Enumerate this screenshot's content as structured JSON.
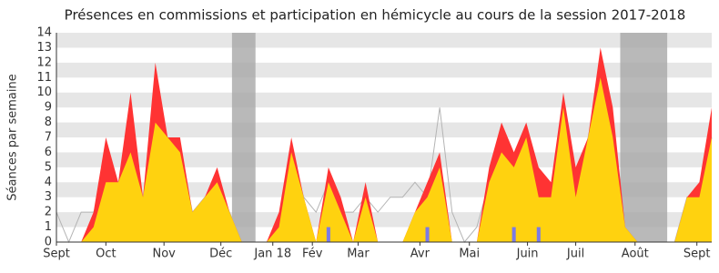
{
  "chart_data": {
    "type": "area",
    "title": "Présences en commissions et participation en hémicycle au cours de la session 2017-2018",
    "y_label": "Séances par semaine",
    "x": [
      0,
      1,
      2,
      3,
      4,
      5,
      6,
      7,
      8,
      9,
      10,
      11,
      12,
      13,
      14,
      15,
      16,
      17,
      18,
      19,
      20,
      21,
      22,
      23,
      24,
      25,
      26,
      27,
      28,
      29,
      30,
      31,
      32,
      33,
      34,
      35,
      36,
      37,
      38,
      39,
      40,
      41,
      42,
      43,
      44,
      45,
      46,
      47,
      48,
      49,
      50,
      51,
      52,
      53
    ],
    "xlim": [
      0,
      53
    ],
    "xticks": [
      {
        "value": 0,
        "label": "Sept"
      },
      {
        "value": 4,
        "label": "Oct"
      },
      {
        "value": 8.7,
        "label": "Nov"
      },
      {
        "value": 13.3,
        "label": "Déc"
      },
      {
        "value": 17.5,
        "label": "Jan 18"
      },
      {
        "value": 20.7,
        "label": "Fév"
      },
      {
        "value": 24.4,
        "label": "Mar"
      },
      {
        "value": 29.4,
        "label": "Avr"
      },
      {
        "value": 33.4,
        "label": "Mai"
      },
      {
        "value": 38.1,
        "label": "Juin"
      },
      {
        "value": 42,
        "label": "Juil"
      },
      {
        "value": 46.8,
        "label": "Août"
      },
      {
        "value": 51.8,
        "label": "Sept"
      }
    ],
    "ylim": [
      0,
      14
    ],
    "yticks": [
      0,
      1,
      2,
      3,
      4,
      5,
      6,
      7,
      8,
      9,
      10,
      11,
      12,
      13,
      14
    ],
    "grid": "bands",
    "shaded_ranges": [
      [
        14.2,
        16.1
      ],
      [
        45.6,
        49.4
      ]
    ],
    "series": [
      {
        "kind": "line",
        "color": "#b4b4b4",
        "values": [
          2,
          0,
          2,
          2,
          4,
          4,
          6,
          3,
          8,
          7,
          6,
          2,
          3,
          4,
          2,
          0,
          0,
          0,
          1,
          6,
          3,
          2,
          4,
          2,
          2,
          3,
          2,
          3,
          3,
          4,
          3,
          9,
          2,
          0,
          1,
          4,
          6,
          5,
          7,
          3,
          3,
          9,
          3,
          7,
          11,
          7,
          1,
          0,
          0,
          0,
          0,
          3,
          3,
          7
        ]
      },
      {
        "kind": "area",
        "color": "#ff3333",
        "values": [
          0,
          0,
          0,
          2,
          7,
          4,
          10,
          3,
          12,
          7,
          7,
          2,
          3,
          5,
          2,
          0,
          0,
          0,
          2,
          7,
          3,
          0,
          5,
          3,
          0,
          4,
          0,
          0,
          0,
          2,
          4,
          6,
          0,
          0,
          0,
          5,
          8,
          6,
          8,
          5,
          4,
          10,
          5,
          7,
          13,
          9,
          1,
          0,
          0,
          0,
          0,
          3,
          4,
          9
        ]
      },
      {
        "kind": "area",
        "color": "#ffd20f",
        "values": [
          0,
          0,
          0,
          1,
          4,
          4,
          6,
          3,
          8,
          7,
          6,
          2,
          3,
          4,
          2,
          0,
          0,
          0,
          1,
          6,
          3,
          0,
          4,
          2,
          0,
          3,
          0,
          0,
          0,
          2,
          3,
          5,
          0,
          0,
          0,
          4,
          6,
          5,
          7,
          3,
          3,
          9,
          3,
          7,
          11,
          7,
          1,
          0,
          0,
          0,
          0,
          3,
          3,
          7
        ]
      },
      {
        "kind": "bar",
        "color": "#7b7be6",
        "values": [
          0,
          0,
          0,
          0,
          0,
          0,
          0,
          0,
          0,
          0,
          0,
          0,
          0,
          0,
          0,
          0,
          0,
          0,
          0,
          0,
          0,
          0,
          1,
          0,
          0,
          0,
          0,
          0,
          0,
          0,
          1,
          0,
          0,
          0,
          0,
          0,
          0,
          1,
          0,
          1,
          0,
          0,
          0,
          0,
          0,
          0,
          0,
          0,
          0,
          0,
          0,
          0,
          0,
          0
        ]
      }
    ]
  }
}
